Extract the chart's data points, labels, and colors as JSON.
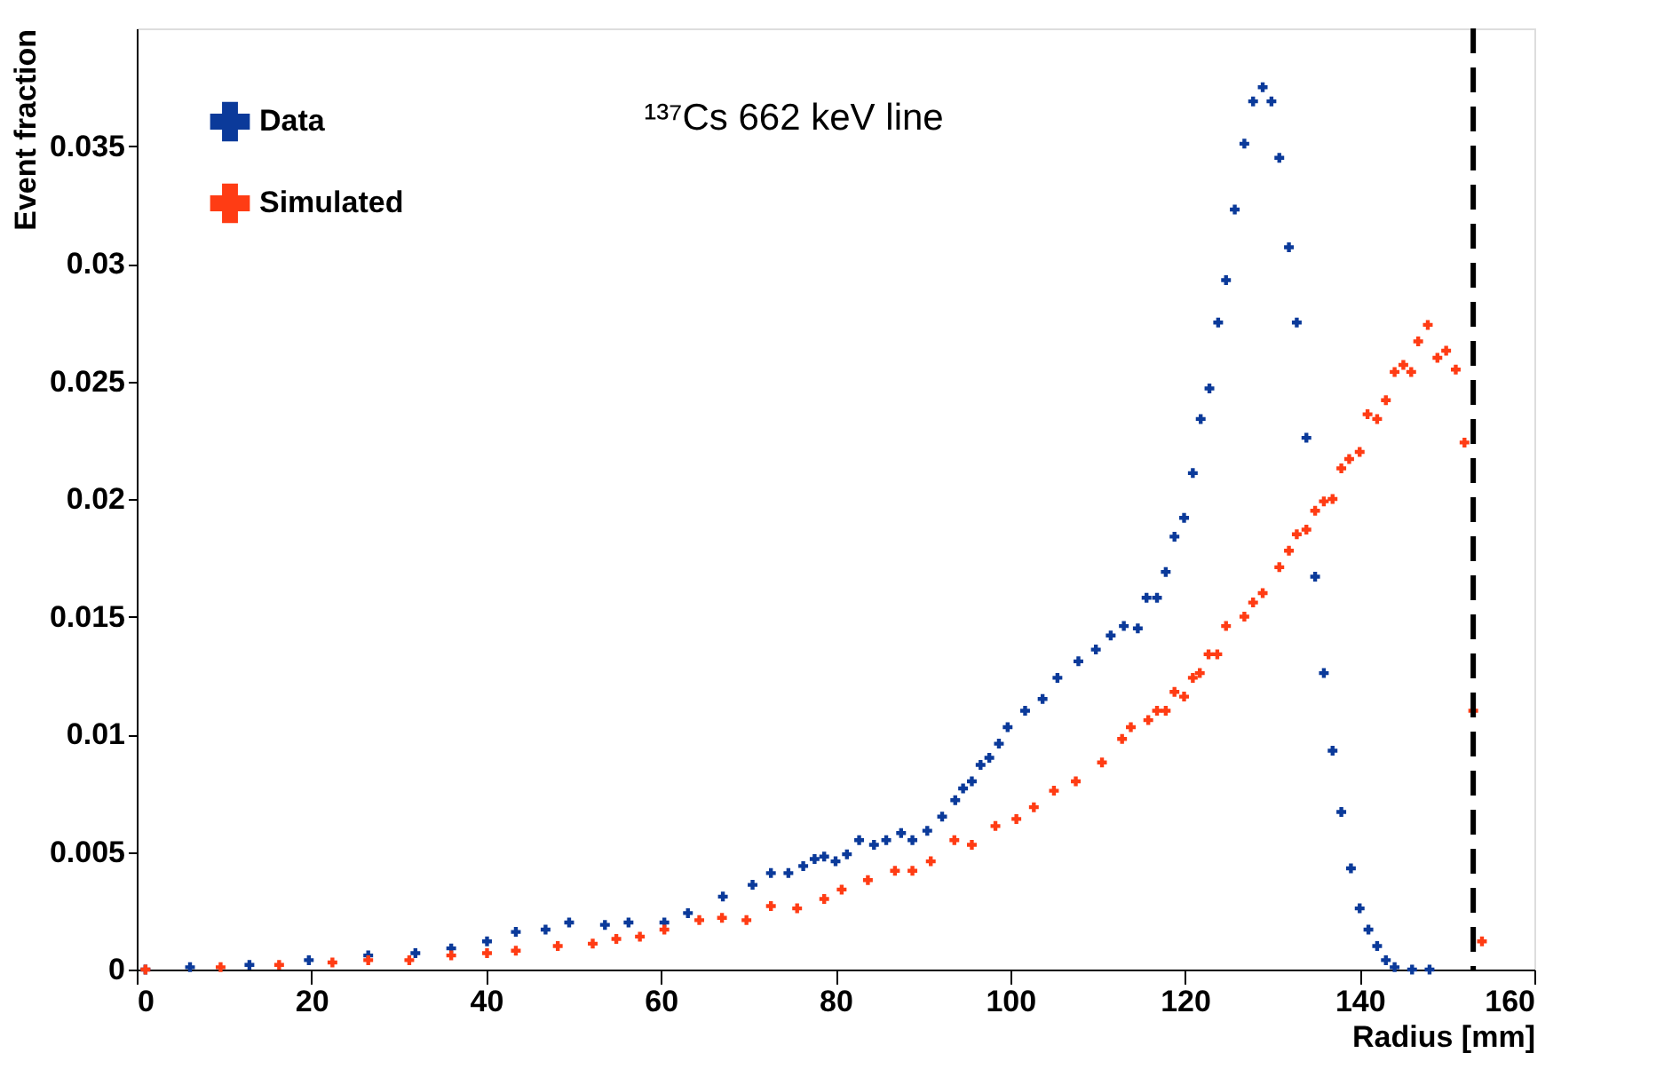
{
  "chart_data": {
    "type": "scatter",
    "xlabel": "Radius [mm]",
    "ylabel": "Event fraction",
    "annotations": [
      "¹³⁷Cs 662 keV line"
    ],
    "xlim": [
      0,
      160
    ],
    "xticks": [
      0,
      20,
      40,
      60,
      80,
      100,
      120,
      140,
      160
    ],
    "ylim": [
      0,
      0.04
    ],
    "yticks": [
      0,
      0.005,
      0.01,
      0.015,
      0.02,
      0.025,
      0.03,
      0.035
    ],
    "grid": false,
    "legend": "top left",
    "marker": "cross",
    "ref_lines": [
      {
        "axis": "x",
        "value": 153,
        "line_style": "dashed",
        "color": "#000000"
      }
    ],
    "series": [
      {
        "name": "Data",
        "color": "#0b3a9a",
        "x": [
          1,
          6.1,
          12.9,
          19.7,
          26.5,
          31.9,
          36,
          40.1,
          43.4,
          46.8,
          49.5,
          53.6,
          56.3,
          60.4,
          63.1,
          67.1,
          70.5,
          72.6,
          74.6,
          76.3,
          77.6,
          78.7,
          80,
          81.3,
          82.7,
          84.4,
          85.8,
          87.5,
          88.8,
          90.5,
          92.2,
          93.7,
          94.6,
          95.6,
          96.6,
          97.6,
          98.7,
          99.7,
          101.7,
          103.7,
          105.4,
          107.8,
          109.8,
          111.5,
          113,
          114.6,
          115.6,
          116.8,
          117.8,
          118.8,
          119.9,
          120.9,
          121.8,
          122.8,
          123.8,
          124.7,
          125.7,
          126.8,
          127.8,
          128.9,
          129.9,
          130.8,
          131.9,
          132.8,
          133.9,
          134.9,
          135.9,
          136.9,
          137.9,
          139,
          140,
          141,
          142,
          143,
          144,
          146,
          148
        ],
        "values": [
          0,
          0.0001,
          0.0002,
          0.0004,
          0.0006,
          0.0007,
          0.0009,
          0.0012,
          0.0016,
          0.0017,
          0.002,
          0.0019,
          0.002,
          0.002,
          0.0024,
          0.0031,
          0.0036,
          0.0041,
          0.0041,
          0.0044,
          0.0047,
          0.0048,
          0.0046,
          0.0049,
          0.0055,
          0.0053,
          0.0055,
          0.0058,
          0.0055,
          0.0059,
          0.0065,
          0.0072,
          0.0077,
          0.008,
          0.0087,
          0.009,
          0.0096,
          0.0103,
          0.011,
          0.0115,
          0.0124,
          0.0131,
          0.0136,
          0.0142,
          0.0146,
          0.0145,
          0.0158,
          0.0158,
          0.0169,
          0.0184,
          0.0192,
          0.0211,
          0.0234,
          0.0247,
          0.0275,
          0.0293,
          0.0323,
          0.0351,
          0.0369,
          0.0375,
          0.0369,
          0.0345,
          0.0307,
          0.0275,
          0.0226,
          0.0167,
          0.0126,
          0.0093,
          0.0067,
          0.0043,
          0.0026,
          0.0017,
          0.001,
          0.0004,
          0.0001,
          0,
          0
        ]
      },
      {
        "name": "Simulated",
        "color": "#ff3c14",
        "x": [
          1,
          9.6,
          16.3,
          22.4,
          26.5,
          31.2,
          36,
          40.1,
          43.4,
          48.2,
          52.2,
          54.9,
          57.6,
          60.4,
          64.4,
          67,
          69.8,
          72.6,
          75.6,
          78.7,
          80.7,
          83.7,
          86.8,
          88.8,
          90.9,
          93.6,
          95.6,
          98.3,
          100.7,
          102.7,
          105,
          107.5,
          110.5,
          112.8,
          113.8,
          115.8,
          116.8,
          117.8,
          118.8,
          119.9,
          120.9,
          121.7,
          122.7,
          123.7,
          124.7,
          126.8,
          127.8,
          128.9,
          130.8,
          131.9,
          132.8,
          133.9,
          134.9,
          135.9,
          136.9,
          137.9,
          138.8,
          140,
          140.9,
          142,
          143,
          144,
          145,
          145.9,
          146.7,
          147.8,
          148.9,
          149.9,
          151,
          152,
          153,
          154
        ],
        "values": [
          0,
          0.0001,
          0.0002,
          0.0003,
          0.0004,
          0.0004,
          0.0006,
          0.0007,
          0.0008,
          0.001,
          0.0011,
          0.0013,
          0.0014,
          0.0017,
          0.0021,
          0.0022,
          0.0021,
          0.0027,
          0.0026,
          0.003,
          0.0034,
          0.0038,
          0.0042,
          0.0042,
          0.0046,
          0.0055,
          0.0053,
          0.0061,
          0.0064,
          0.0069,
          0.0076,
          0.008,
          0.0088,
          0.0098,
          0.0103,
          0.0106,
          0.011,
          0.011,
          0.0118,
          0.0116,
          0.0124,
          0.0126,
          0.0134,
          0.0134,
          0.0146,
          0.015,
          0.0156,
          0.016,
          0.0171,
          0.0178,
          0.0185,
          0.0187,
          0.0195,
          0.0199,
          0.02,
          0.0213,
          0.0217,
          0.022,
          0.0236,
          0.0234,
          0.0242,
          0.0254,
          0.0257,
          0.0254,
          0.0267,
          0.0274,
          0.026,
          0.0263,
          0.0255,
          0.0224,
          0.011,
          0.0012
        ]
      }
    ]
  }
}
